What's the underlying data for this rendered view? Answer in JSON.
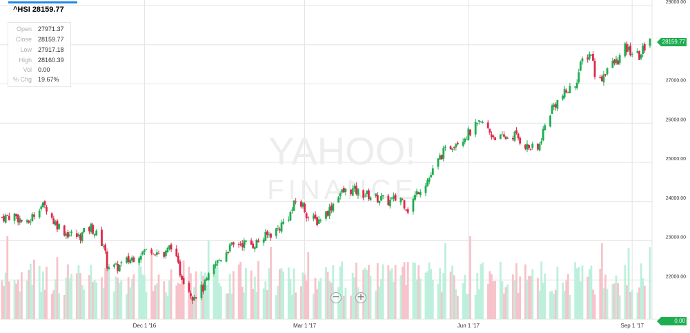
{
  "header": {
    "symbol": "^HSI",
    "last": "28159.77",
    "title": "^HSI 28159.77"
  },
  "ohlc": [
    {
      "key": "Open",
      "value": "27971.37"
    },
    {
      "key": "Close",
      "value": "28159.77"
    },
    {
      "key": "Low",
      "value": "27917.18"
    },
    {
      "key": "High",
      "value": "28160.39"
    },
    {
      "key": "Vol",
      "value": "0.00"
    },
    {
      "key": "% Chg",
      "value": "19.67%"
    }
  ],
  "watermark": {
    "line1": "YAHOO!",
    "line2": "FINANCE"
  },
  "last_price_label": "28159.77",
  "volume_label": "0.00",
  "colors": {
    "up": "#1ead50",
    "down": "#e0284a",
    "up_volume": "#bdf0dc",
    "down_volume": "#f7c3cb",
    "grid": "#e3e3e3",
    "accent": "#1e88e5"
  },
  "icons": {
    "zoom_out": "minus-circle-icon",
    "zoom_in": "plus-circle-icon"
  },
  "chart_data": {
    "type": "candlestick",
    "x_range": [
      "2016-09-12",
      "2017-09-11"
    ],
    "y_range": [
      21000,
      29000
    ],
    "y_ticks": [
      "22000.00",
      "23000.00",
      "24000.00",
      "25000.00",
      "26000.00",
      "27000.00",
      "28000.00",
      "29000.00"
    ],
    "x_ticks": [
      {
        "date": "2016-12-01",
        "label": "Dec 1 '16"
      },
      {
        "date": "2017-03-01",
        "label": "Mar 1 '17"
      },
      {
        "date": "2017-06-01",
        "label": "Jun 1 '17"
      },
      {
        "date": "2017-09-01",
        "label": "Sep 1 '17"
      }
    ],
    "close_path": [
      [
        "2016-09-12",
        23600
      ],
      [
        "2016-09-19",
        23650
      ],
      [
        "2016-09-26",
        23400
      ],
      [
        "2016-10-03",
        23900
      ],
      [
        "2016-10-07",
        23850
      ],
      [
        "2016-10-11",
        23500
      ],
      [
        "2016-10-18",
        23200
      ],
      [
        "2016-10-25",
        23100
      ],
      [
        "2016-11-01",
        23350
      ],
      [
        "2016-11-08",
        22900
      ],
      [
        "2016-11-10",
        22400
      ],
      [
        "2016-11-15",
        22300
      ],
      [
        "2016-11-22",
        22500
      ],
      [
        "2016-11-29",
        22700
      ],
      [
        "2016-12-05",
        22800
      ],
      [
        "2016-12-12",
        22600
      ],
      [
        "2016-12-16",
        22900
      ],
      [
        "2016-12-21",
        22200
      ],
      [
        "2016-12-28",
        21600
      ],
      [
        "2017-01-03",
        21800
      ],
      [
        "2017-01-10",
        22400
      ],
      [
        "2017-01-17",
        22800
      ],
      [
        "2017-01-24",
        22950
      ],
      [
        "2017-01-31",
        22900
      ],
      [
        "2017-02-07",
        23100
      ],
      [
        "2017-02-14",
        23300
      ],
      [
        "2017-02-21",
        23700
      ],
      [
        "2017-02-24",
        24000
      ],
      [
        "2017-02-28",
        23900
      ],
      [
        "2017-03-03",
        23600
      ],
      [
        "2017-03-08",
        23500
      ],
      [
        "2017-03-15",
        23800
      ],
      [
        "2017-03-20",
        24200
      ],
      [
        "2017-03-27",
        24300
      ],
      [
        "2017-04-03",
        24200
      ],
      [
        "2017-04-10",
        24100
      ],
      [
        "2017-04-17",
        24000
      ],
      [
        "2017-04-24",
        24100
      ],
      [
        "2017-04-28",
        23800
      ],
      [
        "2017-05-04",
        24300
      ],
      [
        "2017-05-10",
        24600
      ],
      [
        "2017-05-17",
        25200
      ],
      [
        "2017-05-24",
        25500
      ],
      [
        "2017-05-31",
        25700
      ],
      [
        "2017-06-05",
        25900
      ],
      [
        "2017-06-09",
        26000
      ],
      [
        "2017-06-14",
        25700
      ],
      [
        "2017-06-20",
        25600
      ],
      [
        "2017-06-27",
        25700
      ],
      [
        "2017-07-04",
        25400
      ],
      [
        "2017-07-10",
        25300
      ],
      [
        "2017-07-13",
        25800
      ],
      [
        "2017-07-18",
        26400
      ],
      [
        "2017-07-24",
        26700
      ],
      [
        "2017-07-31",
        27000
      ],
      [
        "2017-08-04",
        27600
      ],
      [
        "2017-08-09",
        27800
      ],
      [
        "2017-08-11",
        27300
      ],
      [
        "2017-08-14",
        27100
      ],
      [
        "2017-08-18",
        27400
      ],
      [
        "2017-08-24",
        27600
      ],
      [
        "2017-08-28",
        27900
      ],
      [
        "2017-09-01",
        27800
      ],
      [
        "2017-09-05",
        27700
      ],
      [
        "2017-09-08",
        27950
      ],
      [
        "2017-09-11",
        28159.77
      ]
    ]
  }
}
